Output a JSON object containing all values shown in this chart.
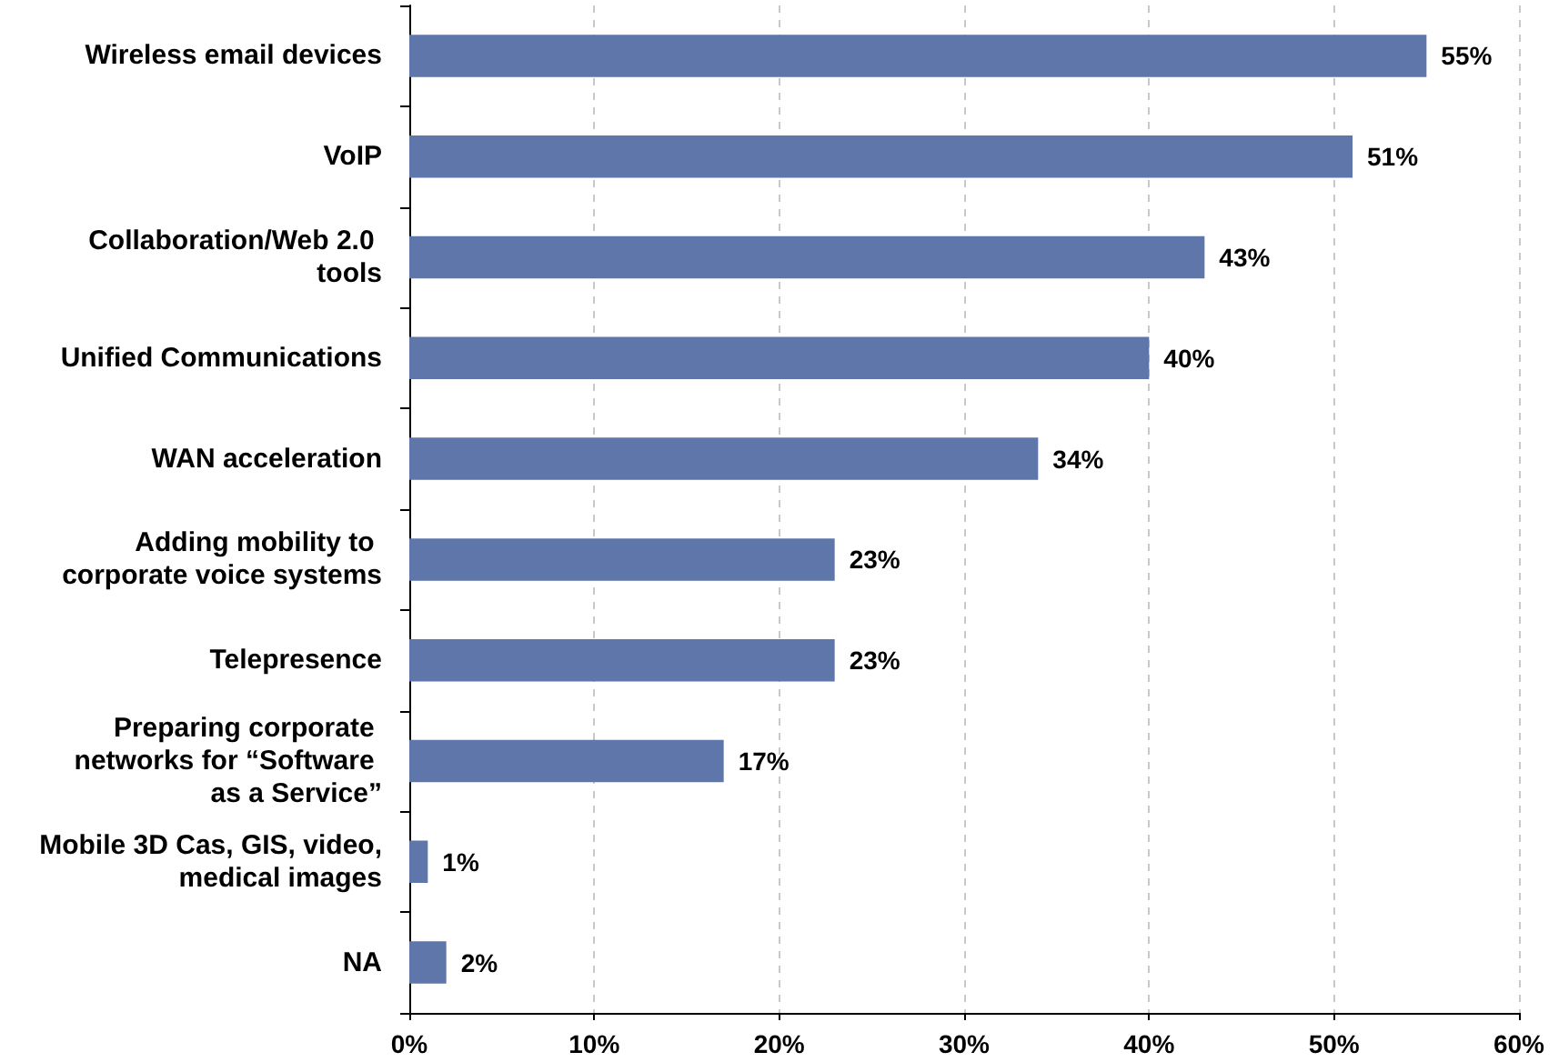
{
  "chart_data": {
    "type": "bar",
    "orientation": "horizontal",
    "categories": [
      "Wireless email devices",
      "VoIP",
      "Collaboration/Web 2.0 tools",
      "Unified Communications",
      "WAN acceleration",
      "Adding mobility to corporate voice systems",
      "Telepresence",
      "Preparing corporate networks for “Software as a Service”",
      "Mobile 3D Cas, GIS, video, medical images",
      "NA"
    ],
    "values": [
      55,
      51,
      43,
      40,
      34,
      23,
      23,
      17,
      1,
      2
    ],
    "value_labels": [
      "55%",
      "51%",
      "43%",
      "40%",
      "34%",
      "23%",
      "23%",
      "17%",
      "1%",
      "2%"
    ],
    "color": "#5f76aa",
    "xlim": [
      0,
      60
    ],
    "xticks": [
      {
        "value": 0,
        "label": "0%"
      },
      {
        "value": 10,
        "label": "10%"
      },
      {
        "value": 20,
        "label": "20%"
      },
      {
        "value": 30,
        "label": "30%"
      },
      {
        "value": 40,
        "label": "40%"
      },
      {
        "value": 50,
        "label": "50%"
      },
      {
        "value": 60,
        "label": "60%"
      }
    ],
    "grid": "x"
  }
}
